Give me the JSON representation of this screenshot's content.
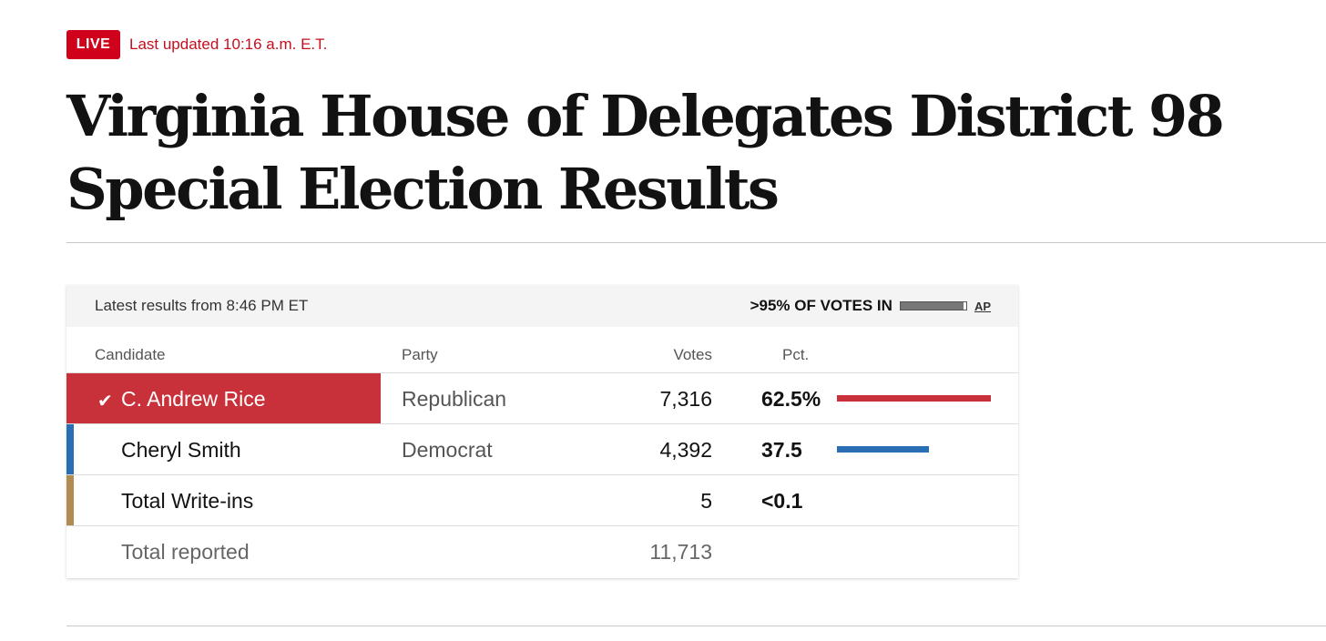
{
  "live": {
    "badge": "LIVE",
    "updated": "Last updated 10:16 a.m. E.T."
  },
  "headline": "Virginia House of Delegates District 98 Special Election Results",
  "results": {
    "latest": "Latest results from 8:46 PM ET",
    "votes_in_label": ">95% OF VOTES IN",
    "reporting_fraction": 0.96,
    "source": "AP",
    "headers": {
      "candidate": "Candidate",
      "party": "Party",
      "votes": "Votes",
      "pct": "Pct."
    },
    "candidates": [
      {
        "name": "C. Andrew Rice",
        "party": "Republican",
        "votes": "7,316",
        "pct": "62.5%",
        "pct_value": 62.5,
        "color": "#c8313a",
        "winner": true,
        "check": "✔"
      },
      {
        "name": "Cheryl Smith",
        "party": "Democrat",
        "votes": "4,392",
        "pct": "37.5",
        "pct_value": 37.5,
        "color": "#2a6eb5",
        "winner": false
      },
      {
        "name": "Total Write-ins",
        "party": "",
        "votes": "5",
        "pct": "<0.1",
        "pct_value": 0,
        "color": "#b08c52",
        "winner": false
      }
    ],
    "total": {
      "label": "Total reported",
      "votes": "11,713"
    }
  }
}
